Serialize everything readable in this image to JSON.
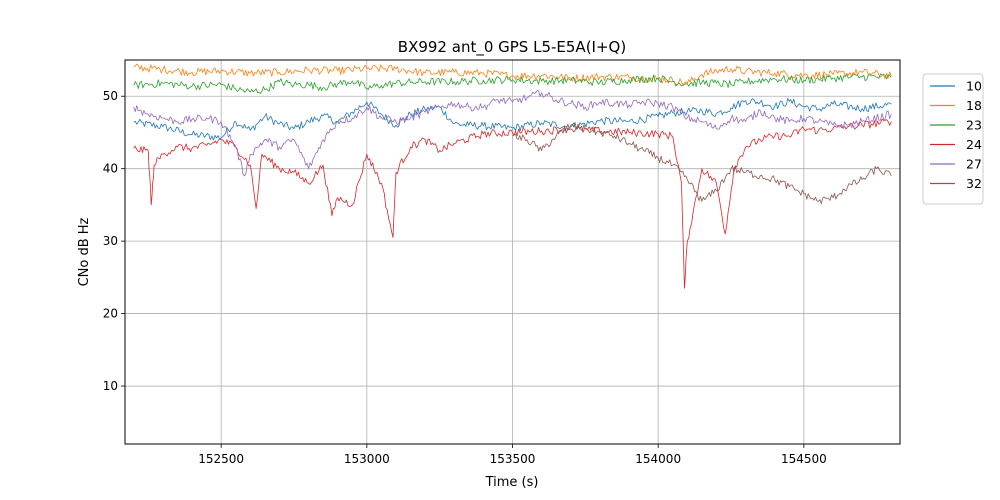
{
  "chart_data": {
    "type": "line",
    "title": "BX992 ant_0 GPS L5-E5A(I+Q)",
    "xlabel": "Time (s)",
    "ylabel": "CNo dB Hz",
    "xlim": [
      152170,
      154830
    ],
    "ylim": [
      2,
      55
    ],
    "xticks": [
      152500,
      153000,
      153500,
      154000,
      154500
    ],
    "yticks": [
      10,
      20,
      30,
      40,
      50
    ],
    "grid": true,
    "legend_position": "outside-right",
    "series": [
      {
        "name": "10",
        "color": "#1f77b4",
        "points": [
          [
            152200,
            46.4
          ],
          [
            152300,
            45.8
          ],
          [
            152400,
            44.7
          ],
          [
            152500,
            44.3
          ],
          [
            152550,
            46.5
          ],
          [
            152600,
            45.3
          ],
          [
            152650,
            47.2
          ],
          [
            152700,
            46.2
          ],
          [
            152750,
            45.5
          ],
          [
            152800,
            46.5
          ],
          [
            152850,
            47.3
          ],
          [
            152900,
            46.4
          ],
          [
            152950,
            47.8
          ],
          [
            153000,
            49.2
          ],
          [
            153050,
            47.5
          ],
          [
            153100,
            46.0
          ],
          [
            153150,
            47.5
          ],
          [
            153200,
            48.2
          ],
          [
            153250,
            48.5
          ],
          [
            153300,
            46.2
          ],
          [
            153350,
            46.0
          ],
          [
            153400,
            45.9
          ],
          [
            153500,
            45.6
          ],
          [
            153600,
            46.3
          ],
          [
            153700,
            45.8
          ],
          [
            153800,
            46.6
          ],
          [
            153900,
            46.5
          ],
          [
            154000,
            47.2
          ],
          [
            154050,
            47.7
          ],
          [
            154100,
            47.9
          ],
          [
            154150,
            48.0
          ],
          [
            154200,
            47.6
          ],
          [
            154250,
            48.4
          ],
          [
            154300,
            49.4
          ],
          [
            154350,
            49.2
          ],
          [
            154400,
            48.6
          ],
          [
            154450,
            49.3
          ],
          [
            154500,
            48.6
          ],
          [
            154550,
            48.2
          ],
          [
            154600,
            48.9
          ],
          [
            154700,
            48.3
          ],
          [
            154800,
            48.9
          ]
        ]
      },
      {
        "name": "18",
        "color": "#ff7f0e",
        "points": [
          [
            152200,
            54.0
          ],
          [
            152300,
            53.7
          ],
          [
            152400,
            53.3
          ],
          [
            152500,
            53.5
          ],
          [
            152600,
            53.2
          ],
          [
            152700,
            53.3
          ],
          [
            152800,
            53.6
          ],
          [
            152900,
            53.5
          ],
          [
            153000,
            53.8
          ],
          [
            153100,
            53.8
          ],
          [
            153200,
            53.2
          ],
          [
            153300,
            53.3
          ],
          [
            153400,
            53.2
          ],
          [
            153500,
            52.8
          ],
          [
            153600,
            52.9
          ],
          [
            153700,
            52.5
          ],
          [
            153800,
            52.7
          ],
          [
            153900,
            52.6
          ],
          [
            154000,
            52.4
          ],
          [
            154050,
            52.2
          ],
          [
            154100,
            51.8
          ],
          [
            154150,
            53.0
          ],
          [
            154200,
            53.5
          ],
          [
            154250,
            53.8
          ],
          [
            154300,
            53.4
          ],
          [
            154400,
            53.2
          ],
          [
            154500,
            52.9
          ],
          [
            154600,
            53.0
          ],
          [
            154700,
            53.3
          ],
          [
            154800,
            52.8
          ]
        ]
      },
      {
        "name": "23",
        "color": "#2ca02c",
        "points": [
          [
            152200,
            51.5
          ],
          [
            152300,
            51.8
          ],
          [
            152400,
            51.4
          ],
          [
            152500,
            51.6
          ],
          [
            152550,
            51.0
          ],
          [
            152600,
            50.6
          ],
          [
            152650,
            50.9
          ],
          [
            152700,
            52.0
          ],
          [
            152750,
            51.6
          ],
          [
            152800,
            51.6
          ],
          [
            152850,
            51.2
          ],
          [
            152900,
            51.7
          ],
          [
            152950,
            52.1
          ],
          [
            153000,
            51.1
          ],
          [
            153050,
            51.5
          ],
          [
            153100,
            51.8
          ],
          [
            153150,
            51.9
          ],
          [
            153200,
            52.0
          ],
          [
            153300,
            52.0
          ],
          [
            153400,
            52.2
          ],
          [
            153500,
            52.3
          ],
          [
            153600,
            52.1
          ],
          [
            153700,
            52.2
          ],
          [
            153800,
            51.9
          ],
          [
            153900,
            52.3
          ],
          [
            154000,
            52.5
          ],
          [
            154050,
            52.0
          ],
          [
            154100,
            51.7
          ],
          [
            154150,
            51.9
          ],
          [
            154200,
            51.8
          ],
          [
            154250,
            51.6
          ],
          [
            154300,
            52.0
          ],
          [
            154400,
            52.4
          ],
          [
            154500,
            52.2
          ],
          [
            154600,
            52.5
          ],
          [
            154700,
            52.7
          ],
          [
            154800,
            52.6
          ]
        ]
      },
      {
        "name": "24",
        "color": "#d62728",
        "points": [
          [
            152200,
            42.8
          ],
          [
            152250,
            42.4
          ],
          [
            152260,
            35.0
          ],
          [
            152270,
            40.5
          ],
          [
            152300,
            42.0
          ],
          [
            152350,
            43.0
          ],
          [
            152400,
            42.8
          ],
          [
            152450,
            43.2
          ],
          [
            152500,
            44.0
          ],
          [
            152550,
            43.0
          ],
          [
            152600,
            40.5
          ],
          [
            152620,
            34.5
          ],
          [
            152640,
            42.0
          ],
          [
            152700,
            40.0
          ],
          [
            152750,
            39.5
          ],
          [
            152800,
            38.0
          ],
          [
            152850,
            40.5
          ],
          [
            152880,
            33.5
          ],
          [
            152900,
            36.0
          ],
          [
            152950,
            35.0
          ],
          [
            153000,
            42.0
          ],
          [
            153050,
            38.0
          ],
          [
            153090,
            30.5
          ],
          [
            153100,
            39.5
          ],
          [
            153150,
            43.0
          ],
          [
            153200,
            44.0
          ],
          [
            153250,
            42.5
          ],
          [
            153300,
            43.5
          ],
          [
            153400,
            44.8
          ],
          [
            153500,
            45.0
          ],
          [
            153600,
            45.2
          ],
          [
            153700,
            45.5
          ],
          [
            153800,
            45.2
          ],
          [
            153900,
            45.0
          ],
          [
            154000,
            44.8
          ],
          [
            154050,
            44.5
          ],
          [
            154080,
            38.0
          ],
          [
            154090,
            23.5
          ],
          [
            154100,
            30.0
          ],
          [
            154150,
            40.0
          ],
          [
            154200,
            38.0
          ],
          [
            154230,
            31.0
          ],
          [
            154260,
            40.0
          ],
          [
            154300,
            43.0
          ],
          [
            154350,
            44.0
          ],
          [
            154400,
            44.5
          ],
          [
            154450,
            44.5
          ],
          [
            154500,
            45.5
          ],
          [
            154550,
            45.3
          ],
          [
            154600,
            45.5
          ],
          [
            154650,
            45.8
          ],
          [
            154700,
            46.0
          ],
          [
            154800,
            46.5
          ]
        ]
      },
      {
        "name": "27",
        "color": "#9467bd",
        "points": [
          [
            152200,
            48.5
          ],
          [
            152250,
            47.5
          ],
          [
            152300,
            47.0
          ],
          [
            152350,
            46.5
          ],
          [
            152400,
            46.8
          ],
          [
            152450,
            47.0
          ],
          [
            152500,
            46.5
          ],
          [
            152550,
            43.0
          ],
          [
            152580,
            39.0
          ],
          [
            152600,
            42.0
          ],
          [
            152650,
            44.0
          ],
          [
            152700,
            43.0
          ],
          [
            152750,
            44.0
          ],
          [
            152800,
            40.0
          ],
          [
            152850,
            44.0
          ],
          [
            152900,
            46.5
          ],
          [
            152950,
            47.0
          ],
          [
            153000,
            48.5
          ],
          [
            153050,
            47.0
          ],
          [
            153100,
            46.5
          ],
          [
            153150,
            47.0
          ],
          [
            153200,
            47.8
          ],
          [
            153250,
            48.5
          ],
          [
            153300,
            49.0
          ],
          [
            153350,
            48.5
          ],
          [
            153400,
            48.5
          ],
          [
            153450,
            49.5
          ],
          [
            153500,
            49.2
          ],
          [
            153550,
            49.8
          ],
          [
            153600,
            50.5
          ],
          [
            153650,
            49.5
          ],
          [
            153700,
            49.0
          ],
          [
            153750,
            48.5
          ],
          [
            153800,
            49.2
          ],
          [
            153850,
            49.0
          ],
          [
            153900,
            48.8
          ],
          [
            153950,
            49.2
          ],
          [
            154000,
            49.0
          ],
          [
            154050,
            48.5
          ],
          [
            154100,
            47.0
          ],
          [
            154150,
            46.5
          ],
          [
            154200,
            45.5
          ],
          [
            154250,
            47.0
          ],
          [
            154300,
            46.5
          ],
          [
            154350,
            48.0
          ],
          [
            154400,
            47.0
          ],
          [
            154450,
            46.5
          ],
          [
            154500,
            47.0
          ],
          [
            154550,
            46.5
          ],
          [
            154600,
            46.0
          ],
          [
            154650,
            46.0
          ],
          [
            154700,
            46.5
          ],
          [
            154800,
            47.5
          ]
        ]
      },
      {
        "name": "32",
        "color": "#8c564b",
        "points": [
          [
            153500,
            44.5
          ],
          [
            153550,
            44.0
          ],
          [
            153600,
            42.5
          ],
          [
            153650,
            44.5
          ],
          [
            153700,
            46.0
          ],
          [
            153750,
            45.5
          ],
          [
            153800,
            45.0
          ],
          [
            153850,
            44.5
          ],
          [
            153900,
            43.5
          ],
          [
            153950,
            42.5
          ],
          [
            154000,
            41.5
          ],
          [
            154050,
            40.5
          ],
          [
            154100,
            38.5
          ],
          [
            154150,
            35.5
          ],
          [
            154200,
            37.0
          ],
          [
            154250,
            40.0
          ],
          [
            154300,
            39.5
          ],
          [
            154350,
            39.0
          ],
          [
            154400,
            38.5
          ],
          [
            154450,
            37.5
          ],
          [
            154500,
            36.5
          ],
          [
            154550,
            35.5
          ],
          [
            154600,
            36.0
          ],
          [
            154650,
            37.5
          ],
          [
            154700,
            38.5
          ],
          [
            154750,
            40.0
          ],
          [
            154800,
            39.0
          ]
        ]
      }
    ]
  }
}
